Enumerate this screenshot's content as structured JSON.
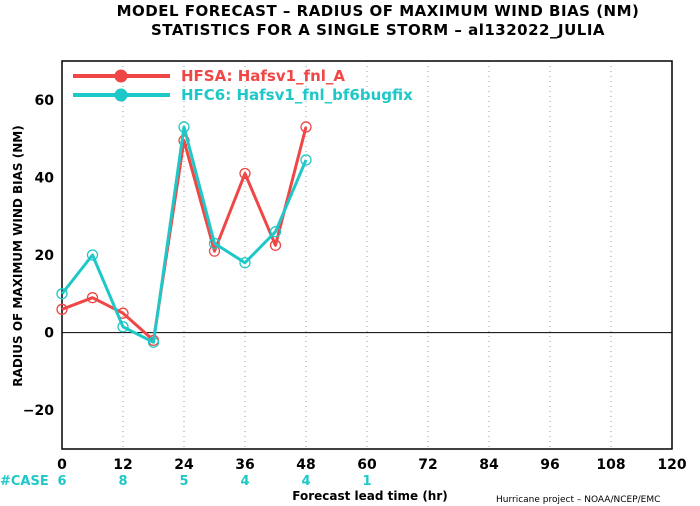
{
  "chart_data": {
    "type": "line",
    "title": "MODEL FORECAST – RADIUS OF MAXIMUM WIND BIAS (NM)",
    "subtitle": "STATISTICS FOR A SINGLE STORM – al132022_JULIA",
    "xlabel": "Forecast lead time (hr)",
    "ylabel": "RADIUS OF MAXIMUM WIND BIAS (NM)",
    "xlim": [
      0,
      120
    ],
    "ylim": [
      -30,
      70
    ],
    "x_ticks": [
      "0",
      "12",
      "24",
      "36",
      "48",
      "60",
      "72",
      "84",
      "96",
      "108",
      "120"
    ],
    "y_ticks": [
      "−20",
      "0",
      "20",
      "40",
      "60"
    ],
    "grid": "dotted vertical lines",
    "legend_position": "top-left",
    "series": [
      {
        "name": "HFSA:  Hafsv1_fnl_A",
        "color": "#f04646",
        "x": [
          0,
          6,
          12,
          18,
          24,
          30,
          36,
          42,
          48
        ],
        "y": [
          6,
          9,
          5,
          -2,
          49.5,
          21,
          41,
          22.5,
          53
        ]
      },
      {
        "name": "HFC6:  Hafsv1_fnl_bf6bugfix",
        "color": "#1fc8c8",
        "x": [
          0,
          6,
          12,
          18,
          24,
          30,
          36,
          42,
          48
        ],
        "y": [
          10,
          20,
          1.5,
          -2.5,
          53,
          23,
          18,
          26,
          44.5
        ]
      }
    ],
    "case_label": "#CASE",
    "case_positions": [
      0,
      12,
      24,
      36,
      48,
      60
    ],
    "cases": [
      "6",
      "8",
      "5",
      "4",
      "4",
      "1"
    ],
    "credit": "Hurricane project – NOAA/NCEP/EMC"
  }
}
